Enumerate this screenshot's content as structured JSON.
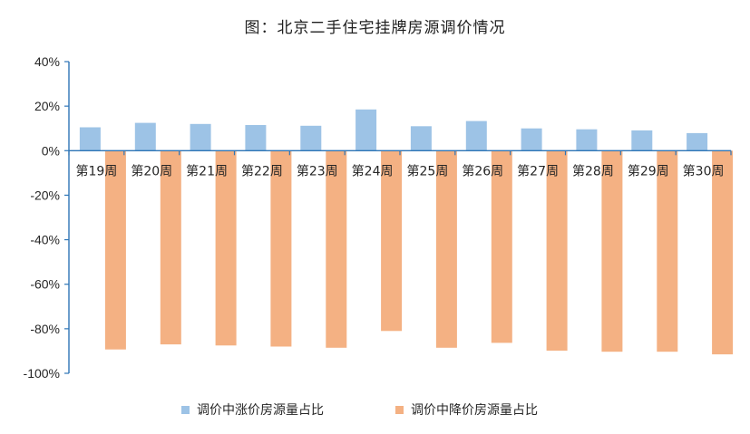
{
  "chart_data": {
    "type": "bar",
    "title": "图：北京二手住宅挂牌房源调价情况",
    "categories": [
      "第19周",
      "第20周",
      "第21周",
      "第22周",
      "第23周",
      "第24周",
      "第25周",
      "第26周",
      "第27周",
      "第28周",
      "第29周",
      "第30周"
    ],
    "series": [
      {
        "name": "调价中涨价房源量占比",
        "color": "#9DC3E6",
        "values": [
          10.5,
          12.5,
          12.0,
          11.5,
          11.2,
          18.5,
          11.0,
          13.3,
          10.0,
          9.6,
          9.1,
          7.9
        ]
      },
      {
        "name": "调价中降价房源量占比",
        "color": "#F4B183",
        "values": [
          -89.3,
          -87.0,
          -87.5,
          -88.0,
          -88.5,
          -81.0,
          -88.5,
          -86.3,
          -89.8,
          -90.3,
          -90.3,
          -91.5
        ]
      }
    ],
    "ylim": [
      -100,
      40
    ],
    "yticks": [
      40,
      20,
      0,
      -20,
      -40,
      -60,
      -80,
      -100
    ],
    "ytick_labels": [
      "40%",
      "20%",
      "0%",
      "-20%",
      "-40%",
      "-60%",
      "-80%",
      "-100%"
    ],
    "xlabel": "",
    "ylabel": "",
    "grid": false,
    "legend_position": "bottom"
  }
}
